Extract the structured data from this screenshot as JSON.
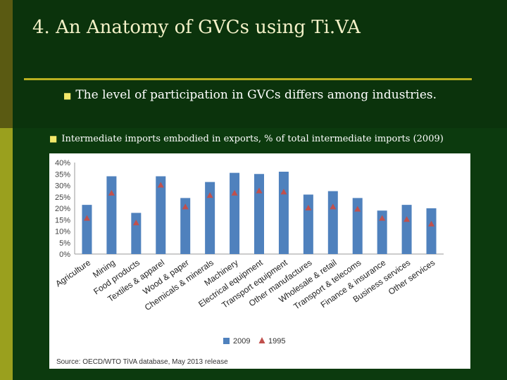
{
  "slide": {
    "title": "4. An Anatomy of GVCs using Ti.VA",
    "bullet_1": "The level of participation in GVCs differs among industries.",
    "bullet_2": "Intermediate imports embodied in exports, % of total intermediate imports (2009)"
  },
  "colors": {
    "series_2009": "#4f81bd",
    "series_1995": "#c0504d"
  },
  "chart_data": {
    "type": "bar",
    "categories": [
      "Agriculture",
      "Mining",
      "Food products",
      "Textiles & apparel",
      "Wood & paper",
      "Chemicals & minerals",
      "Machinery",
      "Electrical equipment",
      "Transport equipment",
      "Other manufactures",
      "Wholesale & retail",
      "Transport & telecoms",
      "Finance & insurance",
      "Business services",
      "Other services"
    ],
    "series": [
      {
        "name": "2009",
        "marker": "bar",
        "values": [
          21.5,
          34,
          18,
          34,
          24.5,
          31.5,
          35.5,
          35,
          36,
          26,
          27.5,
          24.5,
          19,
          21.5,
          20
        ]
      },
      {
        "name": "1995",
        "marker": "triangle",
        "values": [
          15.5,
          26.5,
          13.5,
          30,
          20.5,
          25.5,
          26.5,
          27.5,
          27,
          20,
          20.5,
          19.5,
          15.5,
          15,
          13
        ]
      }
    ],
    "y_ticks": [
      "0%",
      "5%",
      "10%",
      "15%",
      "20%",
      "25%",
      "30%",
      "35%",
      "40%"
    ],
    "ylim": [
      0,
      40
    ],
    "grid": false,
    "legend_position": "bottom",
    "source": "Source: OECD/WTO TiVA database, May 2013 release"
  }
}
